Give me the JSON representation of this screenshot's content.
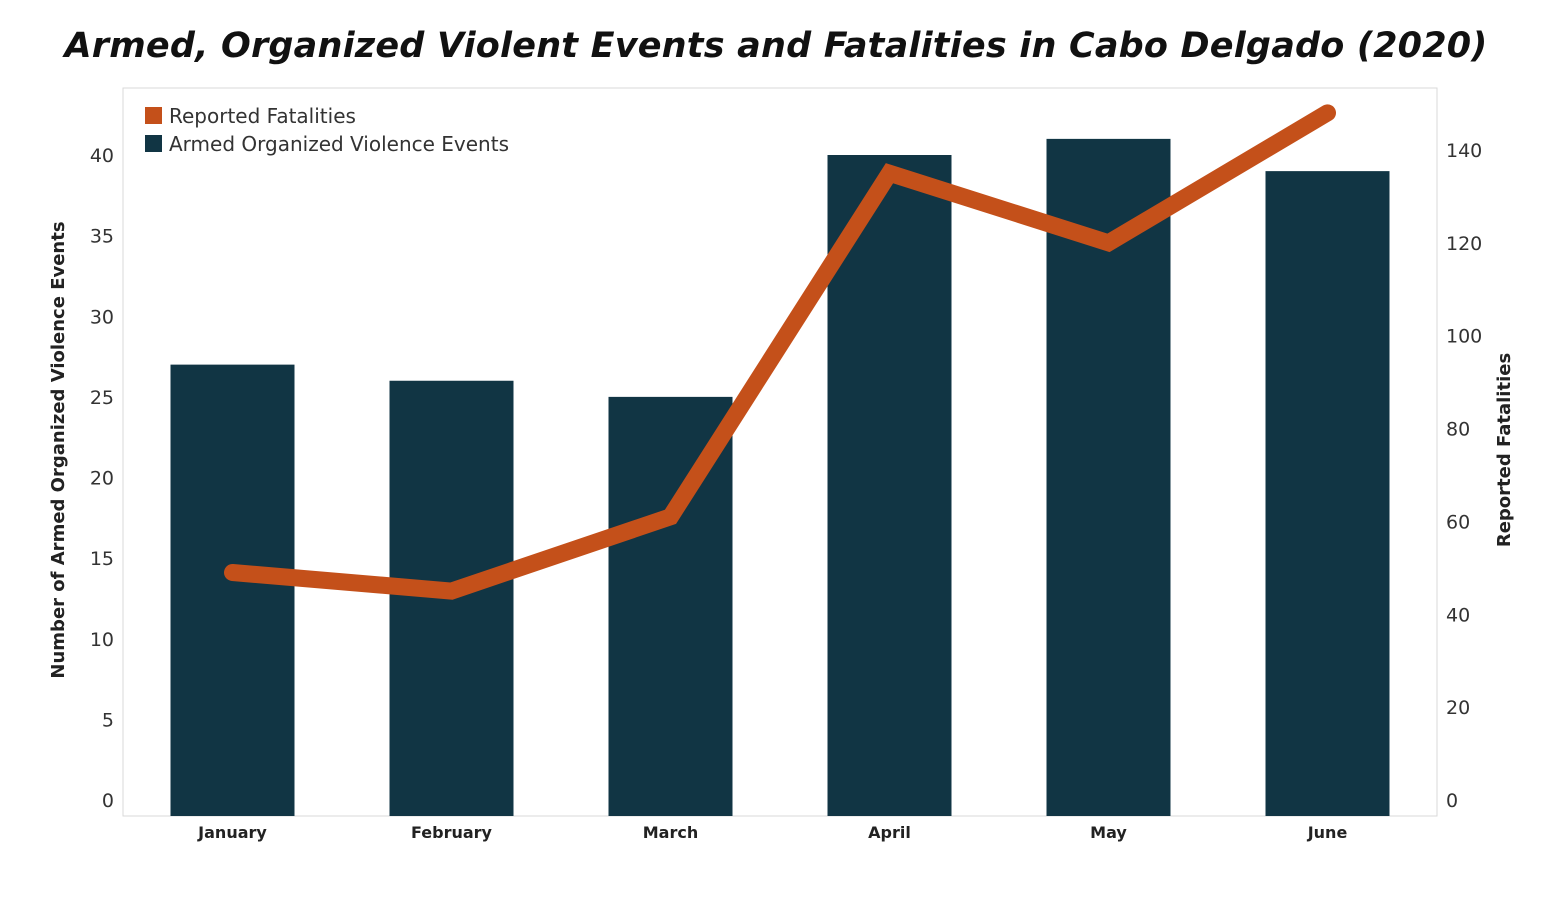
{
  "chart_data": {
    "type": "bar",
    "title": "Armed, Organized Violent Events and Fatalities in Cabo Delgado (2020)",
    "categories": [
      "January",
      "February",
      "March",
      "April",
      "May",
      "June"
    ],
    "series": [
      {
        "name": "Armed Organized Violence Events",
        "type": "bar",
        "axis": "left",
        "color": "#113544",
        "values": [
          27,
          26,
          25,
          40,
          41,
          39
        ]
      },
      {
        "name": "Reported Fatalities",
        "type": "line",
        "axis": "right",
        "color": "#c4501a",
        "values": [
          49,
          45,
          61,
          135,
          120,
          148
        ]
      }
    ],
    "ylabel": "Number of Armed Organized Violence Events",
    "ylim": [
      0,
      44
    ],
    "yticks": [
      0,
      5,
      10,
      15,
      20,
      25,
      30,
      35,
      40
    ],
    "y2label": "Reported Fatalities",
    "y2lim": [
      0,
      150
    ],
    "y2ticks": [
      0,
      20,
      40,
      60,
      80,
      100,
      120,
      140
    ],
    "grid": false,
    "legend_position": "top-left",
    "legend": [
      "Reported Fatalities",
      "Armed Organized Violence Events"
    ]
  }
}
